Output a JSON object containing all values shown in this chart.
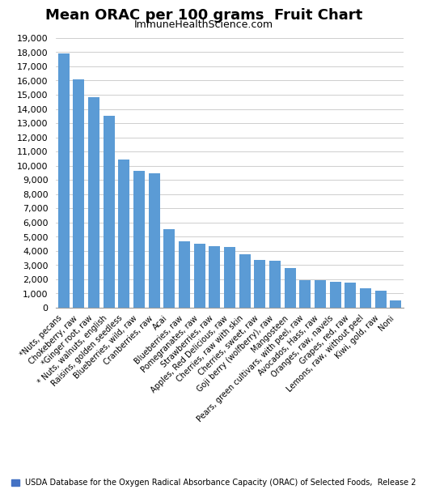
{
  "title": "Mean ORAC per 100 grams  Fruit Chart",
  "subtitle": "ImmuneHealthScience.com",
  "categories": [
    "*Nuts, pecans",
    "Chokeberry, raw",
    "*Ginger root, raw",
    "* Nuts, walnuts, english",
    "Raisins, golden seedless",
    "Blueberries, wild, raw",
    "Cranberries, raw",
    "Acai",
    "Blueberries, raw",
    "Pomegranates, raw",
    "Strawberries, raw",
    "Apples, Red Delicious, raw",
    "Cherries, raw with skin",
    "Cherries, sweet, raw",
    "Goji berry (wolfberry), raw",
    "Mangosteen",
    "Pears, green cultivars, with peel, raw",
    "Avocados, Hass, raw",
    "Oranges, raw, navels",
    "Grapes, red, raw",
    "Lemons, raw, without peel",
    "Kiwi, gold, raw",
    "Noni"
  ],
  "values": [
    17940,
    16062,
    14840,
    13541,
    10450,
    9621,
    9456,
    5500,
    4669,
    4479,
    4302,
    4275,
    3747,
    3361,
    3290,
    2780,
    1911,
    1933,
    1819,
    1746,
    1346,
    1210,
    506
  ],
  "bar_color": "#5B9BD5",
  "legend_color": "#4472C4",
  "legend_text": "USDA Database for the Oxygen Radical Absorbance Capacity (ORAC) of Selected Foods,  Release 2",
  "ylim": [
    0,
    19000
  ],
  "yticks": [
    0,
    1000,
    2000,
    3000,
    4000,
    5000,
    6000,
    7000,
    8000,
    9000,
    10000,
    11000,
    12000,
    13000,
    14000,
    15000,
    16000,
    17000,
    18000,
    19000
  ],
  "background_color": "#FFFFFF",
  "grid_color": "#BBBBBB",
  "title_fontsize": 13,
  "subtitle_fontsize": 9,
  "ylabel_fontsize": 8,
  "xlabel_fontsize": 7,
  "legend_fontsize": 7
}
